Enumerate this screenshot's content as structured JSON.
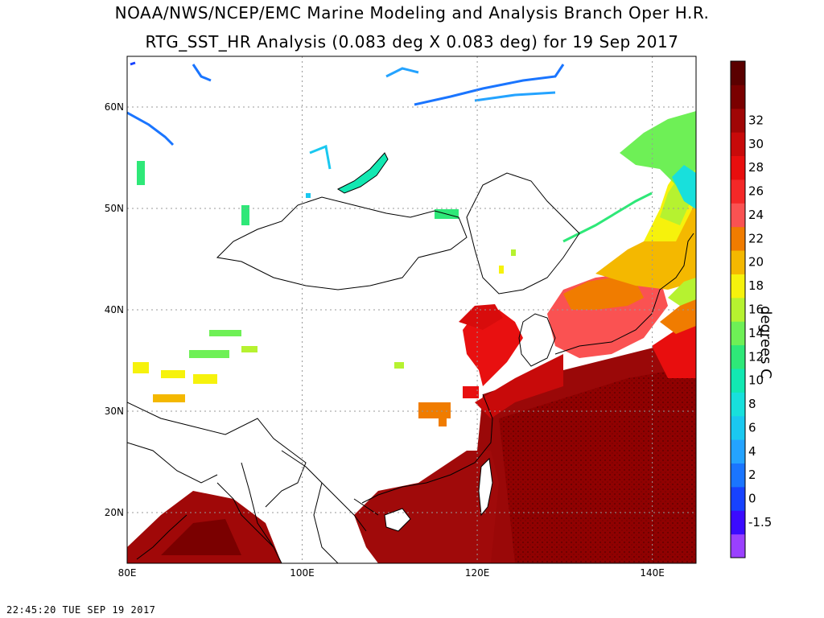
{
  "title_line1": "NOAA/NWS/NCEP/EMC Marine Modeling and Analysis Branch Oper H.R.",
  "title_line2": "RTG_SST_HR Analysis (0.083 deg X 0.083 deg) for 19 Sep 2017",
  "timestamp": "22:45:20  TUE SEP 19 2017",
  "map": {
    "lon_range": [
      80,
      145
    ],
    "lat_range": [
      15,
      65
    ],
    "lon_ticks": [
      {
        "value": 80,
        "label": "80E"
      },
      {
        "value": 100,
        "label": "100E"
      },
      {
        "value": 120,
        "label": "120E"
      },
      {
        "value": 140,
        "label": "140E"
      }
    ],
    "lat_ticks": [
      {
        "value": 20,
        "label": "20N"
      },
      {
        "value": 30,
        "label": "30N"
      },
      {
        "value": 40,
        "label": "40N"
      },
      {
        "value": 50,
        "label": "50N"
      },
      {
        "value": 60,
        "label": "60N"
      }
    ],
    "grid": "dotted"
  },
  "colorbar": {
    "units": "degrees C",
    "levels": [
      {
        "label": "",
        "color": "#9a40ff"
      },
      {
        "label": "-1.5",
        "color": "#3b0bff"
      },
      {
        "label": "0",
        "color": "#1742ff"
      },
      {
        "label": "2",
        "color": "#1a75ff"
      },
      {
        "label": "4",
        "color": "#24a3ff"
      },
      {
        "label": "6",
        "color": "#1ac8f0"
      },
      {
        "label": "8",
        "color": "#18e0dc"
      },
      {
        "label": "10",
        "color": "#12e8b2"
      },
      {
        "label": "12",
        "color": "#2ee878"
      },
      {
        "label": "14",
        "color": "#6ef056"
      },
      {
        "label": "16",
        "color": "#b6f230"
      },
      {
        "label": "18",
        "color": "#f6f20c"
      },
      {
        "label": "20",
        "color": "#f4b800"
      },
      {
        "label": "22",
        "color": "#f07c00"
      },
      {
        "label": "24",
        "color": "#fa5252"
      },
      {
        "label": "26",
        "color": "#f42828"
      },
      {
        "label": "28",
        "color": "#e80e0e"
      },
      {
        "label": "30",
        "color": "#c80a0a"
      },
      {
        "label": "32",
        "color": "#a00606"
      },
      {
        "label": "",
        "color": "#7a0000"
      },
      {
        "label": "",
        "color": "#5a0000"
      }
    ]
  }
}
